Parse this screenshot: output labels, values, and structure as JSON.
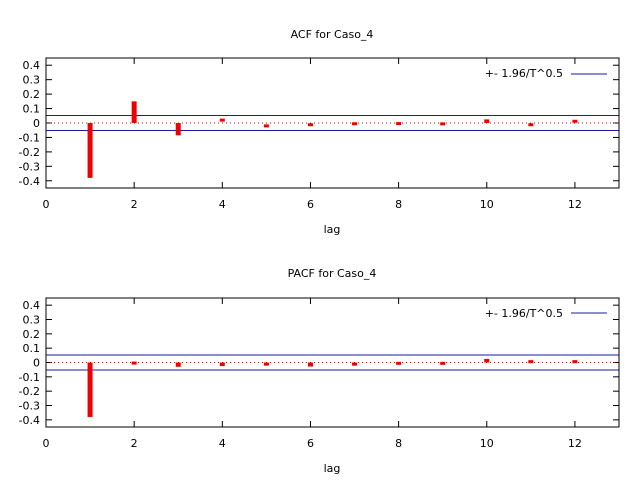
{
  "chart_data": [
    {
      "type": "bar",
      "title": "ACF for Caso_4",
      "xlabel": "lag",
      "ylabel": "",
      "xlim": [
        0,
        13
      ],
      "ylim": [
        -0.45,
        0.45
      ],
      "x_ticks": [
        0,
        2,
        4,
        6,
        8,
        10,
        12
      ],
      "y_ticks": [
        0.4,
        0.3,
        0.2,
        0.1,
        0,
        -0.1,
        -0.2,
        -0.3,
        -0.4
      ],
      "y_tick_labels": [
        "0.4",
        "0.3",
        "0.2",
        "0.1",
        "0",
        "-0.1",
        "-0.2",
        "-0.3",
        "-0.4"
      ],
      "series": [
        {
          "color": "#ee0000",
          "x": [
            1,
            2,
            3,
            4,
            5,
            6,
            7,
            8,
            9,
            10,
            11,
            12
          ],
          "values": [
            -0.38,
            0.15,
            -0.085,
            0.02,
            -0.02,
            -0.012,
            -0.005,
            -0.004,
            -0.006,
            0.025,
            -0.012,
            0.012
          ]
        }
      ],
      "confidence_band": {
        "label": "+- 1.96/T^0.5",
        "value": 0.052,
        "color": "#1a1aa6"
      },
      "zero_line": {
        "style": "dotted",
        "color": "#ee0000"
      },
      "legend": "top-right",
      "grid": false
    },
    {
      "type": "bar",
      "title": "PACF for Caso_4",
      "xlabel": "lag",
      "ylabel": "",
      "xlim": [
        0,
        13
      ],
      "ylim": [
        -0.45,
        0.45
      ],
      "x_ticks": [
        0,
        2,
        4,
        6,
        8,
        10,
        12
      ],
      "y_ticks": [
        0.4,
        0.3,
        0.2,
        0.1,
        0,
        -0.1,
        -0.2,
        -0.3,
        -0.4
      ],
      "y_tick_labels": [
        "0.4",
        "0.3",
        "0.2",
        "0.1",
        "0",
        "-0.1",
        "-0.2",
        "-0.3",
        "-0.4"
      ],
      "series": [
        {
          "color": "#ee0000",
          "x": [
            1,
            2,
            3,
            4,
            5,
            6,
            7,
            8,
            9,
            10,
            11,
            12
          ],
          "values": [
            -0.38,
            -0.004,
            -0.03,
            -0.025,
            -0.022,
            -0.028,
            -0.022,
            -0.006,
            -0.006,
            0.025,
            0.006,
            0.006
          ]
        }
      ],
      "confidence_band": {
        "label": "+- 1.96/T^0.5",
        "value": 0.052,
        "color": "#1a1aa6"
      },
      "zero_line": {
        "style": "dotted",
        "color": "#ee0000"
      },
      "legend": "top-right",
      "grid": false
    }
  ]
}
